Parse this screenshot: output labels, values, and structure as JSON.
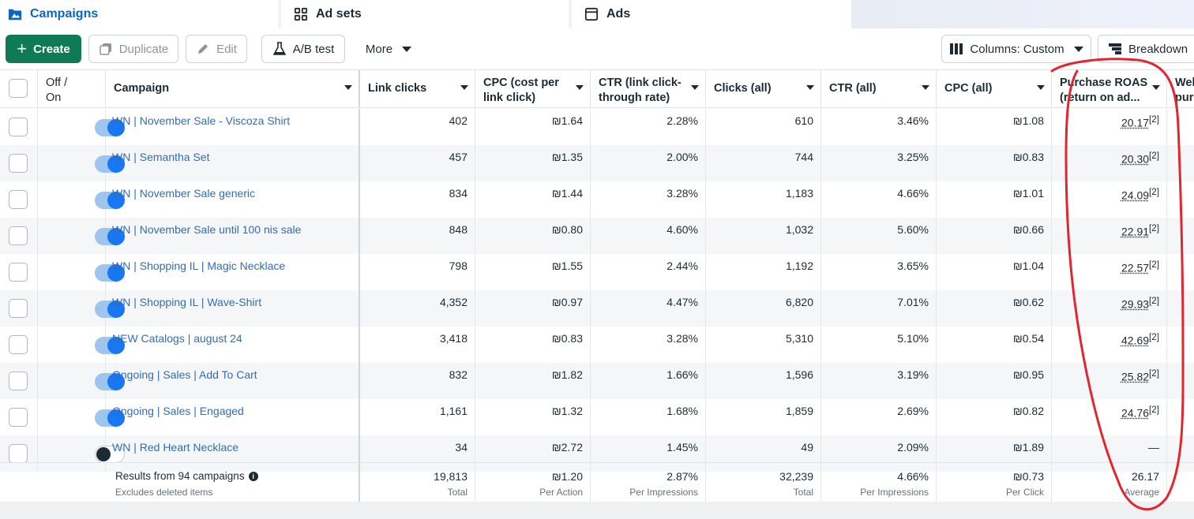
{
  "tabs": [
    {
      "label": "Campaigns",
      "icon": "folder-icon"
    },
    {
      "label": "Ad sets",
      "icon": "grid-icon"
    },
    {
      "label": "Ads",
      "icon": "ad-square-icon"
    }
  ],
  "toolbar": {
    "create": "Create",
    "duplicate": "Duplicate",
    "edit": "Edit",
    "ab_test": "A/B test",
    "more": "More",
    "columns": "Columns: Custom",
    "breakdown": "Breakdown"
  },
  "colors": {
    "accent": "#0a66c2",
    "create_bg": "#0f7b55",
    "link": "#2f6eb6",
    "annotation": "#e0262f"
  },
  "headers": {
    "off_on": [
      "Off /",
      "On"
    ],
    "campaign": "Campaign",
    "link_clicks": "Link clicks",
    "cpc_link": [
      "CPC (cost per",
      "link click)"
    ],
    "ctr_link": [
      "CTR (link click-",
      "through rate)"
    ],
    "clicks_all": "Clicks (all)",
    "ctr_all": "CTR (all)",
    "cpc_all": "CPC (all)",
    "roas": [
      "Purchase ROAS",
      "(return on ad..."
    ],
    "cut": [
      "Wel",
      "pur"
    ]
  },
  "rows": [
    {
      "on": true,
      "name": "WN | November Sale - Viscoza Shirt",
      "link_clicks": "402",
      "cpc_link": "₪1.64",
      "ctr_link": "2.28%",
      "clicks_all": "610",
      "ctr_all": "3.46%",
      "cpc_all": "₪1.08",
      "roas": "20.17",
      "note": "[2]"
    },
    {
      "on": true,
      "name": "WN | Semantha Set",
      "link_clicks": "457",
      "cpc_link": "₪1.35",
      "ctr_link": "2.00%",
      "clicks_all": "744",
      "ctr_all": "3.25%",
      "cpc_all": "₪0.83",
      "roas": "20.30",
      "note": "[2]"
    },
    {
      "on": true,
      "name": "WN | November Sale generic",
      "link_clicks": "834",
      "cpc_link": "₪1.44",
      "ctr_link": "3.28%",
      "clicks_all": "1,183",
      "ctr_all": "4.66%",
      "cpc_all": "₪1.01",
      "roas": "24.09",
      "note": "[2]"
    },
    {
      "on": true,
      "name": "WN | November Sale until 100 nis sale",
      "link_clicks": "848",
      "cpc_link": "₪0.80",
      "ctr_link": "4.60%",
      "clicks_all": "1,032",
      "ctr_all": "5.60%",
      "cpc_all": "₪0.66",
      "roas": "22.91",
      "note": "[2]"
    },
    {
      "on": true,
      "name": "WN | Shopping IL | Magic Necklace",
      "link_clicks": "798",
      "cpc_link": "₪1.55",
      "ctr_link": "2.44%",
      "clicks_all": "1,192",
      "ctr_all": "3.65%",
      "cpc_all": "₪1.04",
      "roas": "22.57",
      "note": "[2]"
    },
    {
      "on": true,
      "name": "WN | Shopping IL | Wave-Shirt",
      "link_clicks": "4,352",
      "cpc_link": "₪0.97",
      "ctr_link": "4.47%",
      "clicks_all": "6,820",
      "ctr_all": "7.01%",
      "cpc_all": "₪0.62",
      "roas": "29.93",
      "note": "[2]"
    },
    {
      "on": true,
      "name": "NEW Catalogs | august 24",
      "link_clicks": "3,418",
      "cpc_link": "₪0.83",
      "ctr_link": "3.28%",
      "clicks_all": "5,310",
      "ctr_all": "5.10%",
      "cpc_all": "₪0.54",
      "roas": "42.69",
      "note": "[2]"
    },
    {
      "on": true,
      "name": "Ongoing | Sales | Add To Cart",
      "link_clicks": "832",
      "cpc_link": "₪1.82",
      "ctr_link": "1.66%",
      "clicks_all": "1,596",
      "ctr_all": "3.19%",
      "cpc_all": "₪0.95",
      "roas": "25.82",
      "note": "[2]"
    },
    {
      "on": true,
      "name": "Ongoing | Sales | Engaged",
      "link_clicks": "1,161",
      "cpc_link": "₪1.32",
      "ctr_link": "1.68%",
      "clicks_all": "1,859",
      "ctr_all": "2.69%",
      "cpc_all": "₪0.82",
      "roas": "24.76",
      "note": "[2]"
    },
    {
      "on": false,
      "name": "WN | Red Heart Necklace",
      "link_clicks": "34",
      "cpc_link": "₪2.72",
      "ctr_link": "1.45%",
      "clicks_all": "49",
      "ctr_all": "2.09%",
      "cpc_all": "₪1.89",
      "roas": "—",
      "note": ""
    }
  ],
  "footer": {
    "results": "Results from 94 campaigns",
    "excludes": "Excludes deleted items",
    "link_clicks": {
      "value": "19,813",
      "sub": "Total"
    },
    "cpc_link": {
      "value": "₪1.20",
      "sub": "Per Action"
    },
    "ctr_link": {
      "value": "2.87%",
      "sub": "Per Impressions"
    },
    "clicks_all": {
      "value": "32,239",
      "sub": "Total"
    },
    "ctr_all": {
      "value": "4.66%",
      "sub": "Per Impressions"
    },
    "cpc_all": {
      "value": "₪0.73",
      "sub": "Per Click"
    },
    "roas": {
      "value": "26.17",
      "sub": "Average"
    }
  }
}
